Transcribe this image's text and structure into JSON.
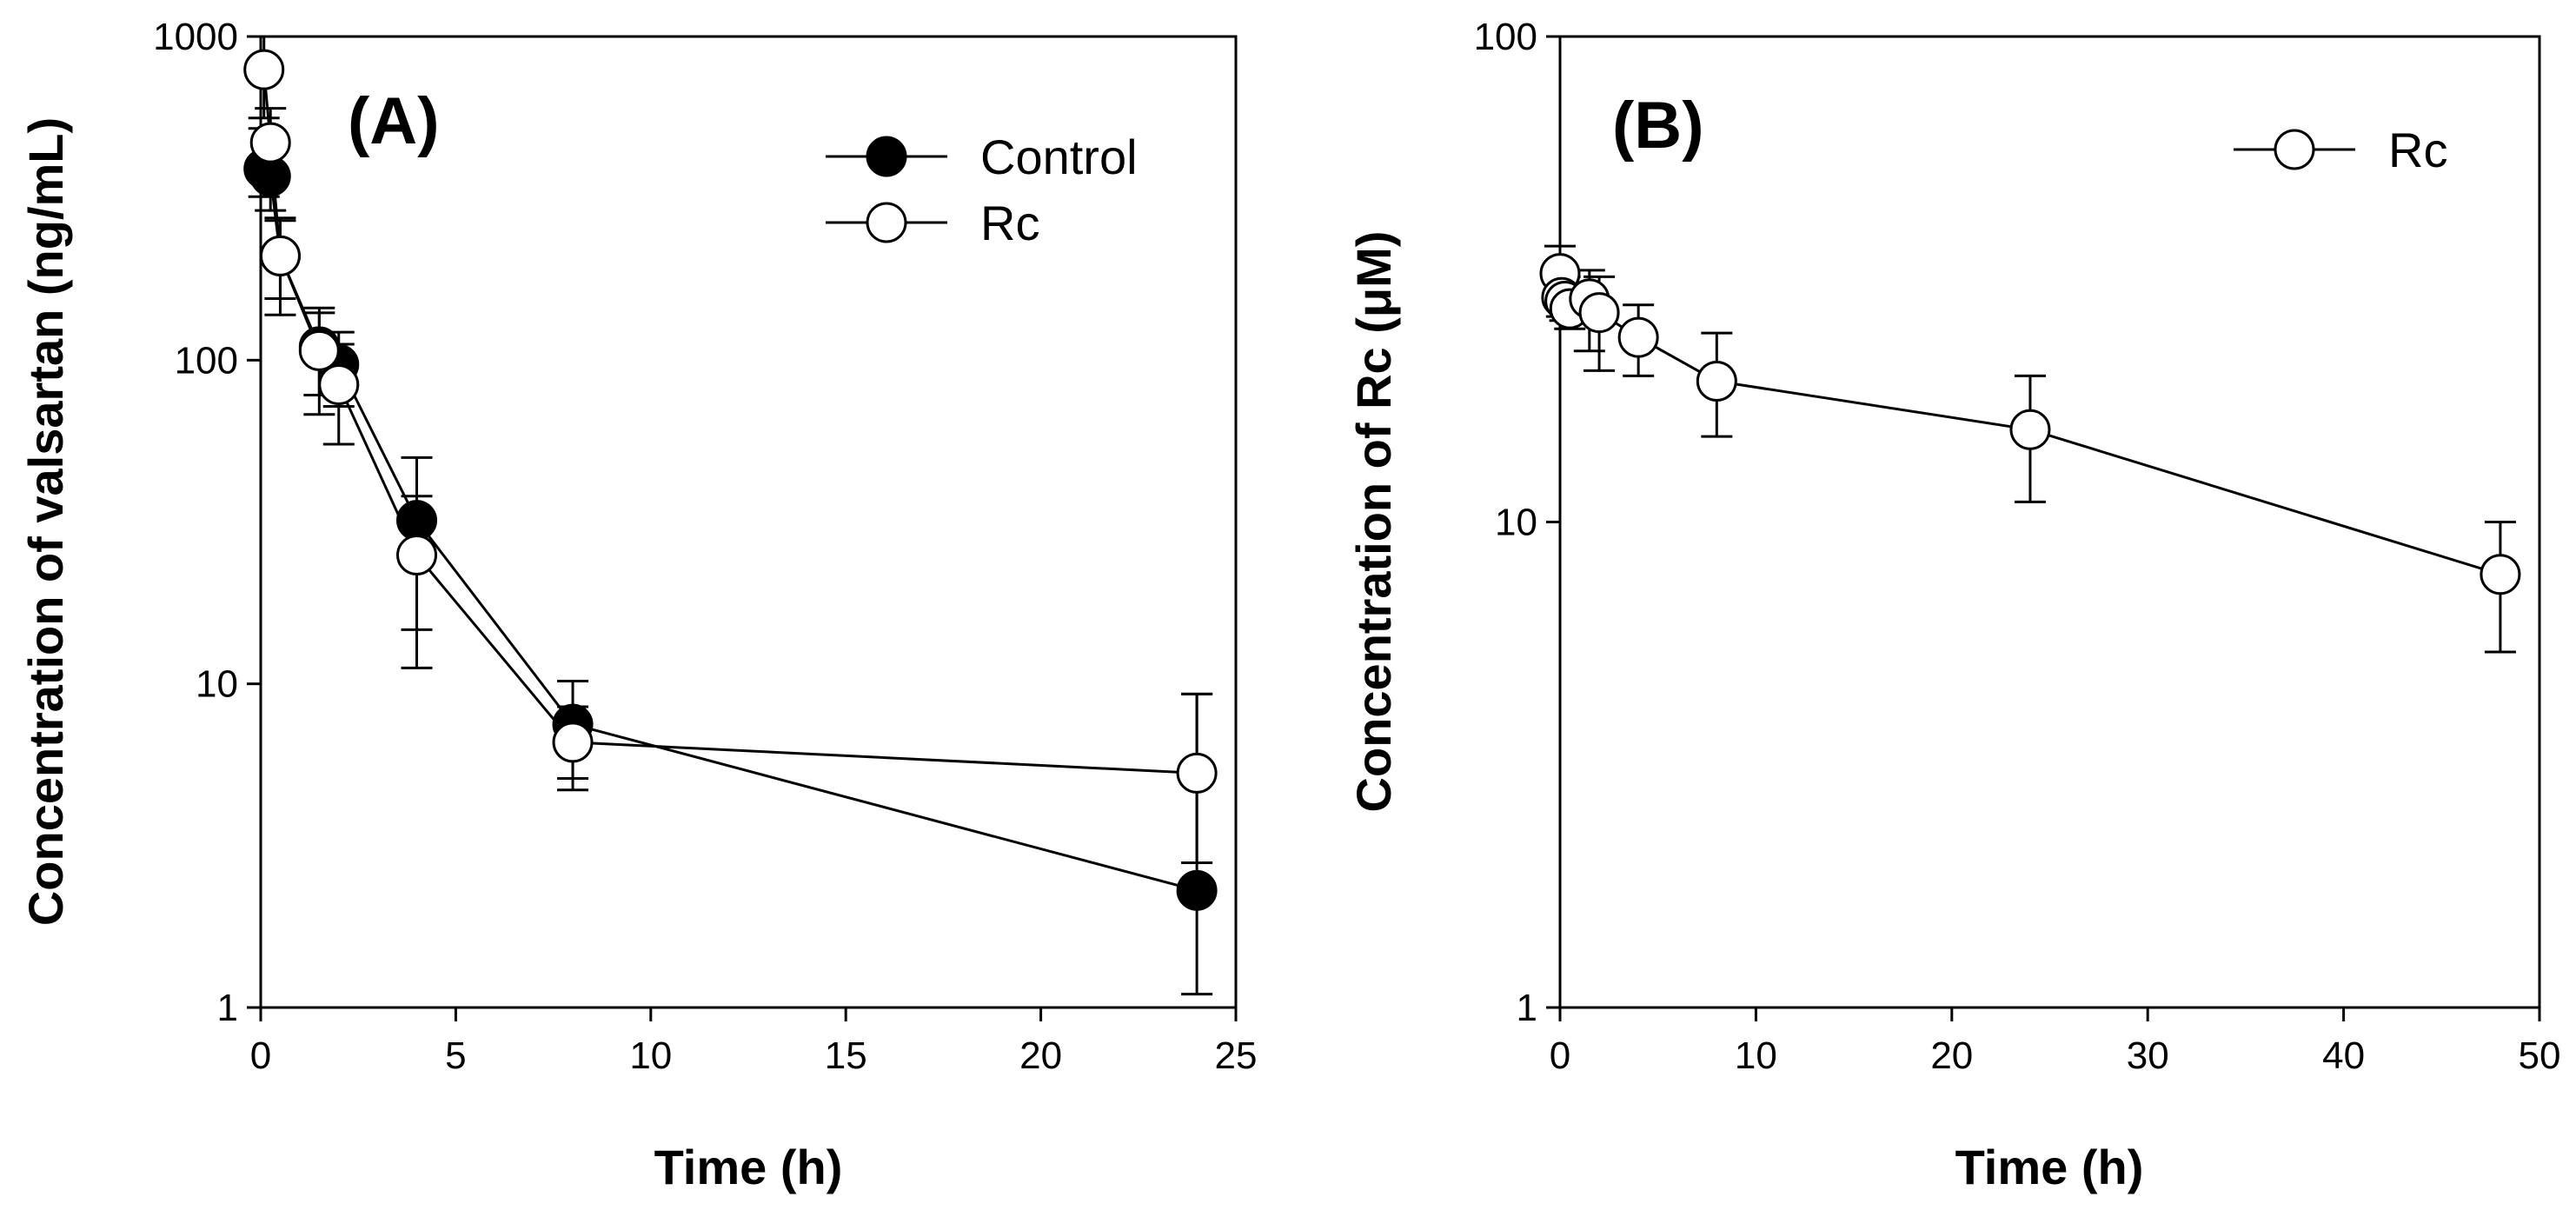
{
  "chart_data": [
    {
      "panel": "(A)",
      "type": "scatter",
      "xscale": "linear",
      "yscale": "log",
      "xlabel": "Time (h)",
      "ylabel": "Concentration of valsartan (ng/mL)",
      "xlim": [
        0,
        25
      ],
      "ylim": [
        1,
        1000
      ],
      "x_ticks": [
        0,
        5,
        10,
        15,
        20,
        25
      ],
      "x_tick_labels": [
        "0",
        "5",
        "10",
        "15",
        "20",
        "25"
      ],
      "y_ticks": [
        1,
        10,
        100,
        1000
      ],
      "y_tick_labels": [
        "1",
        "10",
        "100",
        "1000"
      ],
      "legend_position": "top-right",
      "series": [
        {
          "name": "Control",
          "marker": "filled-circle",
          "x": [
            0.083,
            0.25,
            0.5,
            1.5,
            2,
            4,
            8,
            24
          ],
          "y": [
            390,
            370,
            210,
            110,
            97,
            32,
            7.5,
            2.3
          ],
          "err_high": [
            520,
            480,
            270,
            145,
            122,
            50,
            10.2,
            9.3
          ],
          "err_low": [
            320,
            290,
            155,
            78,
            72,
            14.7,
            5.1,
            1.1
          ]
        },
        {
          "name": "Rc",
          "marker": "open-circle",
          "x": [
            0.083,
            0.25,
            0.5,
            1.5,
            2,
            4,
            8,
            24
          ],
          "y": [
            790,
            470,
            210,
            107,
            84,
            25,
            6.6,
            5.3
          ],
          "err_high": [
            1000,
            600,
            275,
            140,
            112,
            38,
            8.5,
            9.3
          ],
          "err_low": [
            560,
            340,
            138,
            68,
            55,
            11.2,
            4.7,
            2.8
          ]
        }
      ]
    },
    {
      "panel": "(B)",
      "type": "scatter",
      "xscale": "linear",
      "yscale": "log",
      "xlabel": "Time (h)",
      "ylabel": "Concentration of Rc (μM)",
      "xlim": [
        0,
        50
      ],
      "ylim": [
        1,
        100
      ],
      "x_ticks": [
        0,
        10,
        20,
        30,
        40,
        50
      ],
      "x_tick_labels": [
        "0",
        "10",
        "20",
        "30",
        "40",
        "50"
      ],
      "y_ticks": [
        1,
        10,
        100
      ],
      "y_tick_labels": [
        "1",
        "10",
        "100"
      ],
      "legend_position": "top-right",
      "series": [
        {
          "name": "Rc",
          "marker": "open-circle",
          "x": [
            0,
            0.083,
            0.25,
            0.5,
            1.5,
            2,
            4,
            8,
            24,
            48
          ],
          "y": [
            32.5,
            29,
            28.5,
            27.5,
            28.8,
            27,
            24,
            19.5,
            15.5,
            7.8
          ],
          "err_high": [
            37,
            34,
            32,
            31,
            33,
            32,
            28,
            24.5,
            20,
            10
          ],
          "err_low": [
            28.5,
            26.5,
            26,
            25,
            22.5,
            20.5,
            20,
            15,
            11,
            5.4
          ]
        }
      ]
    }
  ]
}
